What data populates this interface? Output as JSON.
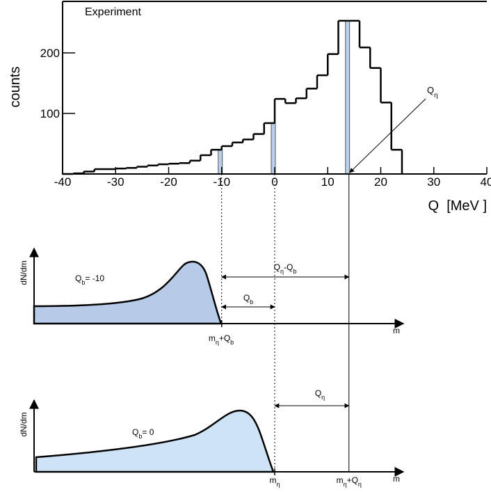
{
  "chart_data": {
    "type": "histogram",
    "title": "Experiment",
    "ylabel": "counts",
    "xlabel": "Q  [MeV ]",
    "bins": [
      -40,
      -38,
      -36,
      -34,
      -32,
      -30,
      -28,
      -26,
      -24,
      -22,
      -20,
      -18,
      -16,
      -14,
      -12,
      -10,
      -8,
      -6,
      -4,
      -2,
      0,
      2,
      4,
      6,
      8,
      10,
      12,
      14,
      16,
      18,
      20,
      22,
      24
    ],
    "values": [
      0,
      1,
      4,
      8,
      8,
      9,
      10,
      12,
      14,
      16,
      17,
      18,
      22,
      31,
      40,
      46,
      52,
      57,
      66,
      84,
      124,
      117,
      125,
      141,
      163,
      198,
      253,
      253,
      209,
      175,
      118,
      40
    ],
    "color": "#000000",
    "highlight_x": [
      -10,
      0,
      14
    ],
    "highlight_color": "#b8d0ea",
    "annotation": {
      "base": "Q",
      "sub": "η"
    },
    "xlim": [
      -40,
      40
    ],
    "ylim": [
      0,
      285
    ],
    "xticks": [
      -40,
      -30,
      -20,
      -10,
      0,
      10,
      20,
      30,
      40
    ],
    "yticks": [
      100,
      200
    ]
  },
  "diagrams": [
    {
      "ylabel": "dN/dm",
      "xlabel": "m",
      "fill": "#b7cbe8",
      "curve_label": {
        "base": "Q",
        "sub": "b",
        "rest": "= -10"
      },
      "edge_label": {
        "base": "m",
        "sub": "η",
        "rest": "+Q",
        "sub2": "b"
      },
      "arrow_short": {
        "base": "Q",
        "sub": "b"
      },
      "arrow_long": {
        "base": "Q",
        "sub": "η",
        "rest": "-Q",
        "sub2": "b"
      }
    },
    {
      "ylabel": "dN/dm",
      "xlabel": "m",
      "fill": "#cfe3f7",
      "curve_label": {
        "base": "Q",
        "sub": "b",
        "rest": "= 0"
      },
      "edge_label": {
        "base": "m",
        "sub": "η"
      },
      "end_label": {
        "base": "m",
        "sub": "η",
        "rest": "+Q",
        "sub2": "η"
      },
      "arrow_long": {
        "base": "Q",
        "sub": "η"
      }
    }
  ]
}
